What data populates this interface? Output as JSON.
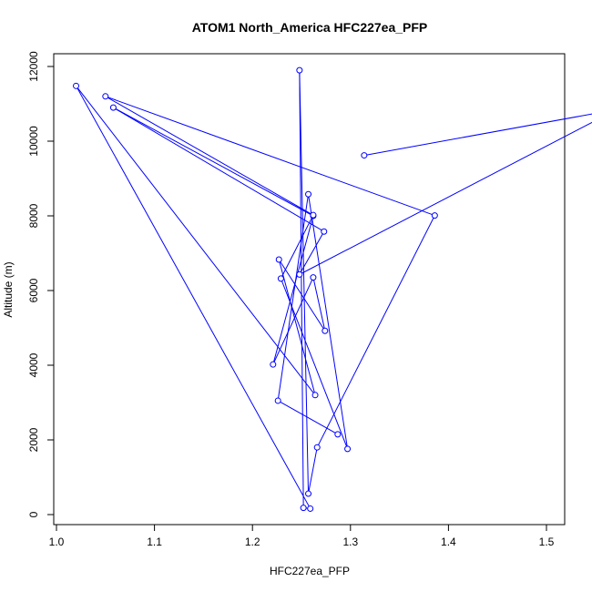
{
  "chart_data": {
    "type": "line",
    "title": "ATOM1 North_America HFC227ea_PFP",
    "xlabel": "HFC227ea_PFP",
    "ylabel": "Altitude (m)",
    "xlim": [
      1.0,
      1.6
    ],
    "ylim": [
      0,
      12000
    ],
    "x_ticks": [
      1.0,
      1.1,
      1.2,
      1.3,
      1.4,
      1.5
    ],
    "x_tick_labels": [
      "1.0",
      "1.1",
      "1.2",
      "1.3",
      "1.4",
      "1.5"
    ],
    "y_ticks": [
      0,
      2000,
      4000,
      6000,
      8000,
      10000,
      12000
    ],
    "y_tick_labels": [
      "0",
      "2000",
      "4000",
      "6000",
      "8000",
      "10000",
      "12000"
    ],
    "grid": false,
    "marker": "open-circle",
    "series_color": "#0000ff",
    "series": [
      {
        "x": [
          1.314,
          1.572,
          1.248,
          1.273,
          1.058,
          1.262,
          1.221,
          1.262,
          1.274,
          1.227,
          1.264,
          1.02,
          1.259,
          1.252,
          1.248,
          1.257,
          1.266,
          1.386,
          1.05,
          1.262,
          1.229,
          1.297,
          1.257,
          1.226,
          1.287
        ],
        "y": [
          9620,
          10850,
          6430,
          7580,
          10900,
          8000,
          4020,
          6350,
          4920,
          6830,
          3200,
          11480,
          160,
          180,
          11900,
          560,
          1800,
          8010,
          11200,
          8020,
          6320,
          1760,
          8580,
          3050,
          2150
        ]
      }
    ]
  }
}
